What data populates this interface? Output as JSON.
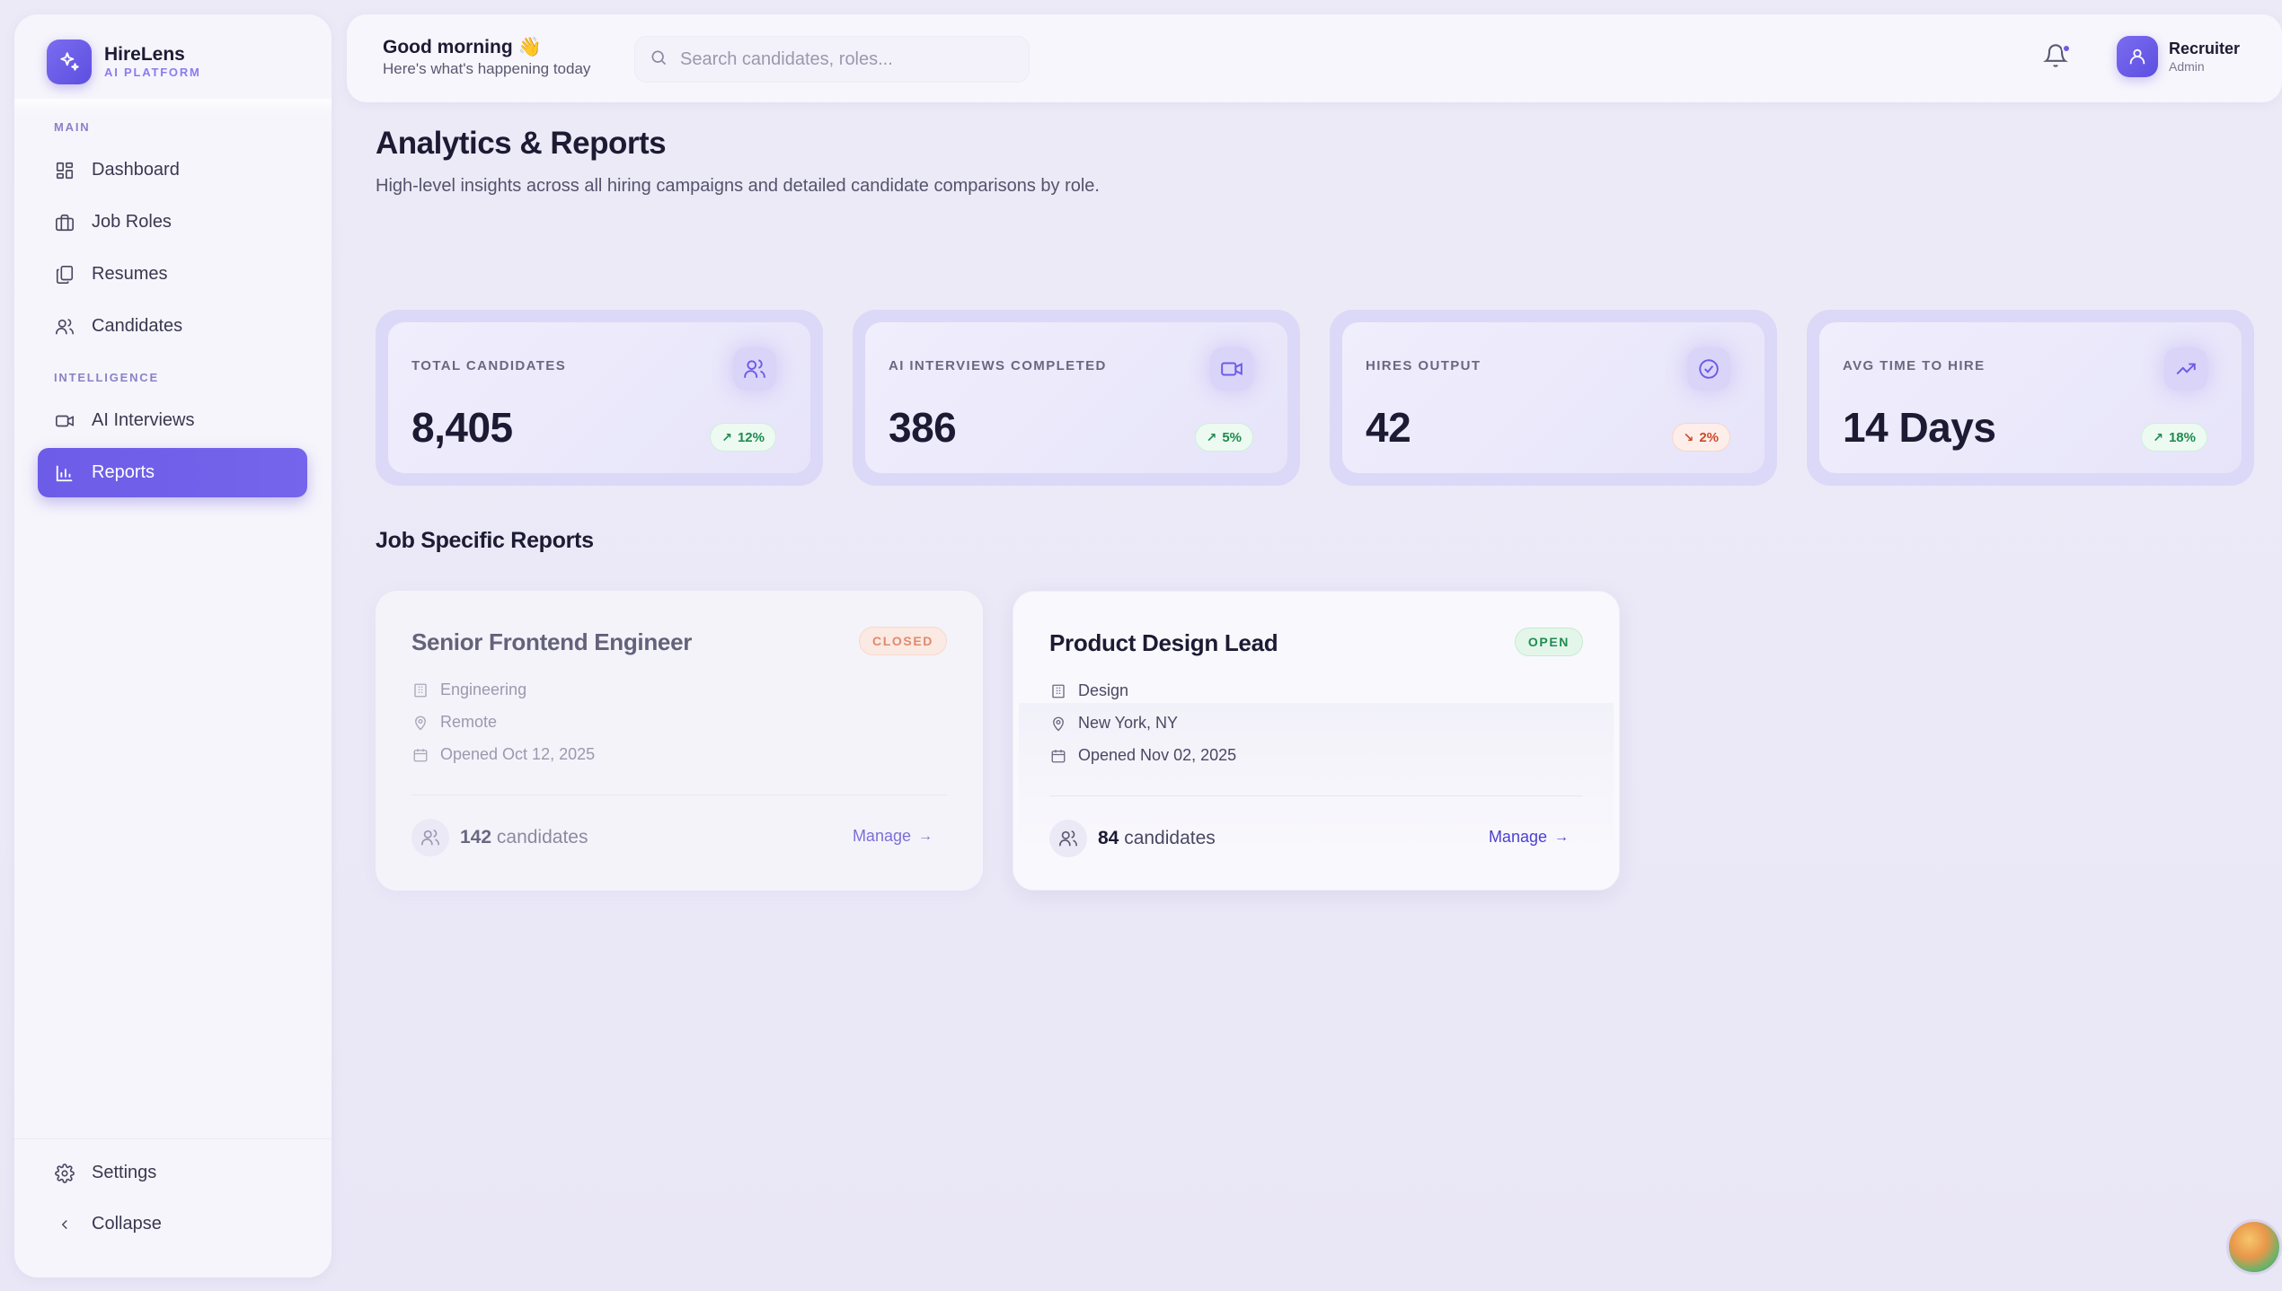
{
  "brand": {
    "name": "HireLens",
    "subtitle": "AI PLATFORM"
  },
  "sidebar": {
    "sections": {
      "main": "MAIN",
      "intelligence": "INTELLIGENCE"
    },
    "items": [
      {
        "label": "Dashboard",
        "icon": "dashboard-icon"
      },
      {
        "label": "Job Roles",
        "icon": "briefcase-icon"
      },
      {
        "label": "Resumes",
        "icon": "documents-icon"
      },
      {
        "label": "Candidates",
        "icon": "users-icon"
      },
      {
        "label": "AI Interviews",
        "icon": "video-icon"
      },
      {
        "label": "Reports",
        "icon": "bar-chart-icon",
        "active": true
      }
    ],
    "settings": "Settings",
    "collapse": "Collapse"
  },
  "header": {
    "greeting": "Good morning 👋",
    "greeting_sub": "Here's what's happening today",
    "search_placeholder": "Search candidates, roles...",
    "user_name": "Recruiter",
    "user_role": "Admin"
  },
  "page": {
    "title": "Analytics & Reports",
    "subtitle": "High-level insights across all hiring campaigns and detailed candidate comparisons by role."
  },
  "stats": [
    {
      "label": "TOTAL CANDIDATES",
      "value": "8,405",
      "change": "12%",
      "trend": "up",
      "icon": "users-icon"
    },
    {
      "label": "AI INTERVIEWS COMPLETED",
      "value": "386",
      "change": "5%",
      "trend": "up",
      "icon": "video-icon"
    },
    {
      "label": "HIRES OUTPUT",
      "value": "42",
      "change": "2%",
      "trend": "down",
      "icon": "check-circle-icon"
    },
    {
      "label": "AVG TIME TO HIRE",
      "value": "14 Days",
      "change": "18%",
      "trend": "up",
      "icon": "trending-up-icon"
    }
  ],
  "section_title": "Job Specific Reports",
  "jobs": [
    {
      "title": "Senior Frontend Engineer",
      "status": "CLOSED",
      "department": "Engineering",
      "location": "Remote",
      "opened": "Opened Oct 12, 2025",
      "candidates_count": "142",
      "candidates_label": "candidates",
      "manage": "Manage"
    },
    {
      "title": "Product Design Lead",
      "status": "OPEN",
      "department": "Design",
      "location": "New York, NY",
      "opened": "Opened Nov 02, 2025",
      "candidates_count": "84",
      "candidates_label": "candidates",
      "manage": "Manage"
    }
  ],
  "colors": {
    "accent": "#6c5ce7",
    "badge_up": "#1e8b4f",
    "badge_down": "#cc4a2c",
    "open": "#1f8c52",
    "closed": "#e08a6c"
  }
}
